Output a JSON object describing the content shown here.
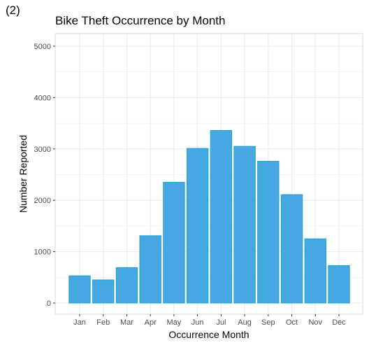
{
  "panel_label": "(2)",
  "chart_data": {
    "type": "bar",
    "title": "Bike Theft Occurrence by Month",
    "xlabel": "Occurrence Month",
    "ylabel": "Number Reported",
    "categories": [
      "Jan",
      "Feb",
      "Mar",
      "Apr",
      "May",
      "Jun",
      "Jul",
      "Aug",
      "Sep",
      "Oct",
      "Nov",
      "Dec"
    ],
    "values": [
      530,
      450,
      690,
      1310,
      2350,
      3010,
      3360,
      3050,
      2760,
      2110,
      1250,
      730
    ],
    "ylim": [
      0,
      5000
    ],
    "yticks": [
      0,
      1000,
      2000,
      3000,
      4000,
      5000
    ],
    "grid": true,
    "legend": "none",
    "bar_fill": "#46a8e2",
    "bar_stroke": "#1fa3c6",
    "grid_color": "#ebebeb",
    "panel_border": "#d9d9d9"
  }
}
